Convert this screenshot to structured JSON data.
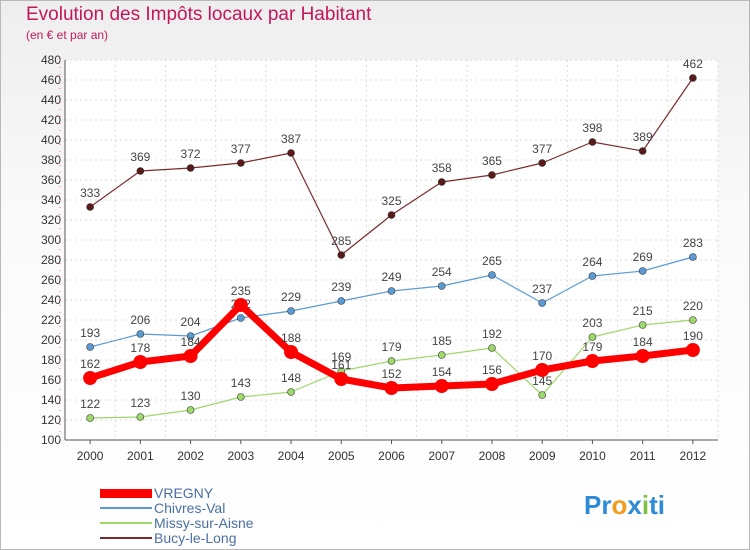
{
  "title": "Evolution des Impôts locaux par Habitant",
  "subtitle": "(en € et par an)",
  "logo": {
    "text": "Proxiti",
    "letters": [
      "P",
      "r",
      "o",
      "x",
      "i",
      "t",
      "i"
    ],
    "colors": [
      "#2e8bd6",
      "#2e8bd6",
      "#f29b1d",
      "#2e8bd6",
      "#7cc142",
      "#2e8bd6",
      "#2e8bd6"
    ]
  },
  "chart_data": {
    "type": "line",
    "x": [
      "2000",
      "2001",
      "2002",
      "2003",
      "2004",
      "2005",
      "2006",
      "2007",
      "2008",
      "2009",
      "2010",
      "2011",
      "2012"
    ],
    "ylim": [
      100,
      480
    ],
    "yticks": [
      100,
      120,
      140,
      160,
      180,
      200,
      220,
      240,
      260,
      280,
      300,
      320,
      340,
      360,
      380,
      400,
      420,
      440,
      460,
      480
    ],
    "grid": true,
    "legend_position": "bottom-left",
    "series": [
      {
        "name": "VREGNY",
        "color": "#ff0000",
        "values": [
          162,
          178,
          184,
          235,
          188,
          161,
          152,
          154,
          156,
          170,
          179,
          184,
          190
        ]
      },
      {
        "name": "Chivres-Val",
        "color": "#5b9bd5",
        "values": [
          193,
          206,
          204,
          222,
          229,
          239,
          249,
          254,
          265,
          237,
          264,
          269,
          283
        ]
      },
      {
        "name": "Missy-sur-Aisne",
        "color": "#9ed86b",
        "values": [
          122,
          123,
          130,
          143,
          148,
          169,
          179,
          185,
          192,
          145,
          203,
          215,
          220
        ]
      },
      {
        "name": "Bucy-le-Long",
        "color": "#7a2a2a",
        "values": [
          333,
          369,
          372,
          377,
          387,
          285,
          325,
          358,
          365,
          377,
          398,
          389,
          462
        ]
      }
    ]
  }
}
